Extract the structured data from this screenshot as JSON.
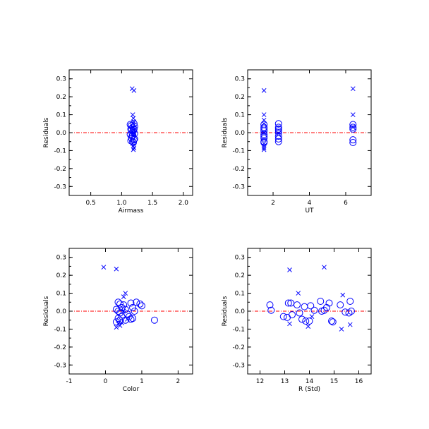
{
  "colors": {
    "marker": "#0000ff",
    "zero_line": "#ff0000",
    "axes": "#000000"
  },
  "chart_data": [
    {
      "type": "scatter",
      "xlabel": "Airmass",
      "ylabel": "Residuals",
      "xlim": [
        0.15,
        2.15
      ],
      "ylim": [
        -0.35,
        0.35
      ],
      "xticks": [
        0.5,
        1.0,
        1.5,
        2.0
      ],
      "xtick_labels": [
        "0.5",
        "1.0",
        "1.5",
        "2.0"
      ],
      "yticks": [
        -0.3,
        -0.2,
        -0.1,
        0.0,
        0.1,
        0.2,
        0.3
      ],
      "ytick_labels": [
        "-0.3",
        "-0.2",
        "-0.1",
        "0.0",
        "0.1",
        "0.2",
        "0.3"
      ],
      "zero_line": 0,
      "series": [
        {
          "marker": "circle",
          "points": [
            [
              1.14,
              0.045
            ],
            [
              1.16,
              0.04
            ],
            [
              1.18,
              0.03
            ],
            [
              1.2,
              0.05
            ],
            [
              1.15,
              0.02
            ],
            [
              1.17,
              0.0
            ],
            [
              1.19,
              0.01
            ],
            [
              1.21,
              0.035
            ],
            [
              1.14,
              -0.01
            ],
            [
              1.16,
              -0.03
            ],
            [
              1.18,
              -0.05
            ],
            [
              1.2,
              -0.04
            ],
            [
              1.15,
              -0.045
            ],
            [
              1.17,
              -0.02
            ],
            [
              1.19,
              -0.055
            ],
            [
              1.21,
              -0.005
            ],
            [
              1.16,
              0.015
            ],
            [
              1.2,
              0.02
            ],
            [
              1.18,
              -0.015
            ],
            [
              1.21,
              -0.035
            ]
          ]
        },
        {
          "marker": "cross",
          "points": [
            [
              1.17,
              0.245
            ],
            [
              1.2,
              0.235
            ],
            [
              1.18,
              0.1
            ],
            [
              1.19,
              0.08
            ],
            [
              1.2,
              0.06
            ],
            [
              1.18,
              0.03
            ],
            [
              1.2,
              0.0
            ],
            [
              1.19,
              -0.01
            ],
            [
              1.18,
              -0.06
            ],
            [
              1.19,
              -0.075
            ],
            [
              1.2,
              -0.085
            ],
            [
              1.19,
              -0.095
            ]
          ]
        }
      ]
    },
    {
      "type": "scatter",
      "xlabel": "UT",
      "ylabel": "Residuals",
      "xlim": [
        0.6,
        7.4
      ],
      "ylim": [
        -0.35,
        0.35
      ],
      "xticks": [
        2,
        4,
        6
      ],
      "xtick_labels": [
        "2",
        "4",
        "6"
      ],
      "yticks": [
        -0.3,
        -0.2,
        -0.1,
        0.0,
        0.1,
        0.2,
        0.3
      ],
      "ytick_labels": [
        "-0.3",
        "-0.2",
        "-0.1",
        "0.0",
        "0.1",
        "0.2",
        "0.3"
      ],
      "zero_line": 0,
      "series": [
        {
          "marker": "circle",
          "points": [
            [
              1.5,
              0.045
            ],
            [
              1.5,
              0.03
            ],
            [
              1.5,
              0.01
            ],
            [
              1.5,
              -0.01
            ],
            [
              1.5,
              -0.03
            ],
            [
              1.5,
              -0.05
            ],
            [
              1.5,
              0.02
            ],
            [
              1.5,
              -0.02
            ],
            [
              1.5,
              -0.055
            ],
            [
              2.3,
              0.05
            ],
            [
              2.3,
              0.03
            ],
            [
              2.3,
              0.02
            ],
            [
              2.3,
              0.0
            ],
            [
              2.3,
              -0.02
            ],
            [
              2.3,
              -0.035
            ],
            [
              2.3,
              -0.05
            ],
            [
              2.3,
              0.01
            ],
            [
              6.4,
              0.045
            ],
            [
              6.4,
              0.03
            ],
            [
              6.4,
              0.02
            ],
            [
              6.4,
              -0.04
            ],
            [
              6.4,
              -0.055
            ]
          ]
        },
        {
          "marker": "cross",
          "points": [
            [
              1.5,
              0.235
            ],
            [
              1.5,
              0.1
            ],
            [
              1.5,
              0.07
            ],
            [
              1.5,
              0.05
            ],
            [
              1.5,
              0.0
            ],
            [
              1.5,
              -0.06
            ],
            [
              1.5,
              -0.075
            ],
            [
              1.5,
              -0.085
            ],
            [
              1.5,
              -0.095
            ],
            [
              2.3,
              -0.005
            ],
            [
              6.4,
              0.245
            ],
            [
              6.4,
              0.1
            ],
            [
              6.4,
              0.03
            ]
          ]
        }
      ]
    },
    {
      "type": "scatter",
      "xlabel": "Color",
      "ylabel": "Residuals",
      "xlim": [
        -1.0,
        2.4
      ],
      "ylim": [
        -0.35,
        0.35
      ],
      "xticks": [
        -1,
        0,
        1,
        2
      ],
      "xtick_labels": [
        "-1",
        "0",
        "1",
        "2"
      ],
      "yticks": [
        -0.3,
        -0.2,
        -0.1,
        0.0,
        0.1,
        0.2,
        0.3
      ],
      "ytick_labels": [
        "-0.3",
        "-0.2",
        "-0.1",
        "0.0",
        "0.1",
        "0.2",
        "0.3"
      ],
      "zero_line": 0,
      "series": [
        {
          "marker": "circle",
          "points": [
            [
              0.35,
              0.05
            ],
            [
              0.4,
              0.04
            ],
            [
              0.45,
              0.02
            ],
            [
              0.3,
              0.01
            ],
            [
              0.35,
              0.0
            ],
            [
              0.4,
              -0.01
            ],
            [
              0.45,
              -0.03
            ],
            [
              0.35,
              -0.04
            ],
            [
              0.4,
              -0.05
            ],
            [
              0.5,
              0.035
            ],
            [
              0.55,
              0.01
            ],
            [
              0.6,
              -0.015
            ],
            [
              0.7,
              0.045
            ],
            [
              0.75,
              0.02
            ],
            [
              0.8,
              0.0
            ],
            [
              0.65,
              -0.03
            ],
            [
              0.7,
              -0.045
            ],
            [
              0.85,
              0.05
            ],
            [
              0.95,
              0.04
            ],
            [
              1.0,
              0.03
            ],
            [
              0.55,
              -0.05
            ],
            [
              0.3,
              -0.06
            ],
            [
              1.35,
              -0.05
            ],
            [
              0.75,
              -0.04
            ]
          ]
        },
        {
          "marker": "cross",
          "points": [
            [
              -0.05,
              0.245
            ],
            [
              0.3,
              0.235
            ],
            [
              0.55,
              0.1
            ],
            [
              0.5,
              0.08
            ],
            [
              0.3,
              -0.09
            ],
            [
              0.4,
              -0.08
            ],
            [
              0.45,
              -0.065
            ],
            [
              0.35,
              -0.07
            ],
            [
              0.6,
              -0.045
            ],
            [
              0.5,
              0.0
            ]
          ]
        }
      ]
    },
    {
      "type": "scatter",
      "xlabel": "R (Std)",
      "ylabel": "Residuals",
      "xlim": [
        11.5,
        16.5
      ],
      "ylim": [
        -0.35,
        0.35
      ],
      "xticks": [
        12,
        13,
        14,
        15,
        16
      ],
      "xtick_labels": [
        "12",
        "13",
        "14",
        "15",
        "16"
      ],
      "yticks": [
        -0.3,
        -0.2,
        -0.1,
        0.0,
        0.1,
        0.2,
        0.3
      ],
      "ytick_labels": [
        "-0.3",
        "-0.2",
        "-0.1",
        "0.0",
        "0.1",
        "0.2",
        "0.3"
      ],
      "zero_line": 0,
      "series": [
        {
          "marker": "circle",
          "points": [
            [
              12.4,
              0.035
            ],
            [
              12.45,
              0.005
            ],
            [
              12.95,
              -0.03
            ],
            [
              13.1,
              -0.035
            ],
            [
              13.15,
              0.045
            ],
            [
              13.25,
              0.045
            ],
            [
              13.3,
              -0.02
            ],
            [
              13.5,
              0.035
            ],
            [
              13.6,
              -0.01
            ],
            [
              13.7,
              -0.045
            ],
            [
              13.8,
              0.025
            ],
            [
              13.85,
              -0.055
            ],
            [
              14.0,
              -0.055
            ],
            [
              14.05,
              0.03
            ],
            [
              14.2,
              0.005
            ],
            [
              14.45,
              0.055
            ],
            [
              14.5,
              0.0
            ],
            [
              14.6,
              0.005
            ],
            [
              14.7,
              0.02
            ],
            [
              14.8,
              0.045
            ],
            [
              14.9,
              -0.055
            ],
            [
              14.95,
              -0.06
            ],
            [
              15.25,
              0.035
            ],
            [
              15.45,
              -0.005
            ],
            [
              15.65,
              0.055
            ],
            [
              15.7,
              0.0
            ],
            [
              15.6,
              -0.01
            ]
          ]
        },
        {
          "marker": "cross",
          "points": [
            [
              13.2,
              0.23
            ],
            [
              14.6,
              0.245
            ],
            [
              13.55,
              0.1
            ],
            [
              15.35,
              0.09
            ],
            [
              13.2,
              -0.07
            ],
            [
              13.95,
              -0.085
            ],
            [
              14.1,
              -0.03
            ],
            [
              15.3,
              -0.1
            ],
            [
              15.65,
              -0.075
            ]
          ]
        }
      ]
    }
  ]
}
